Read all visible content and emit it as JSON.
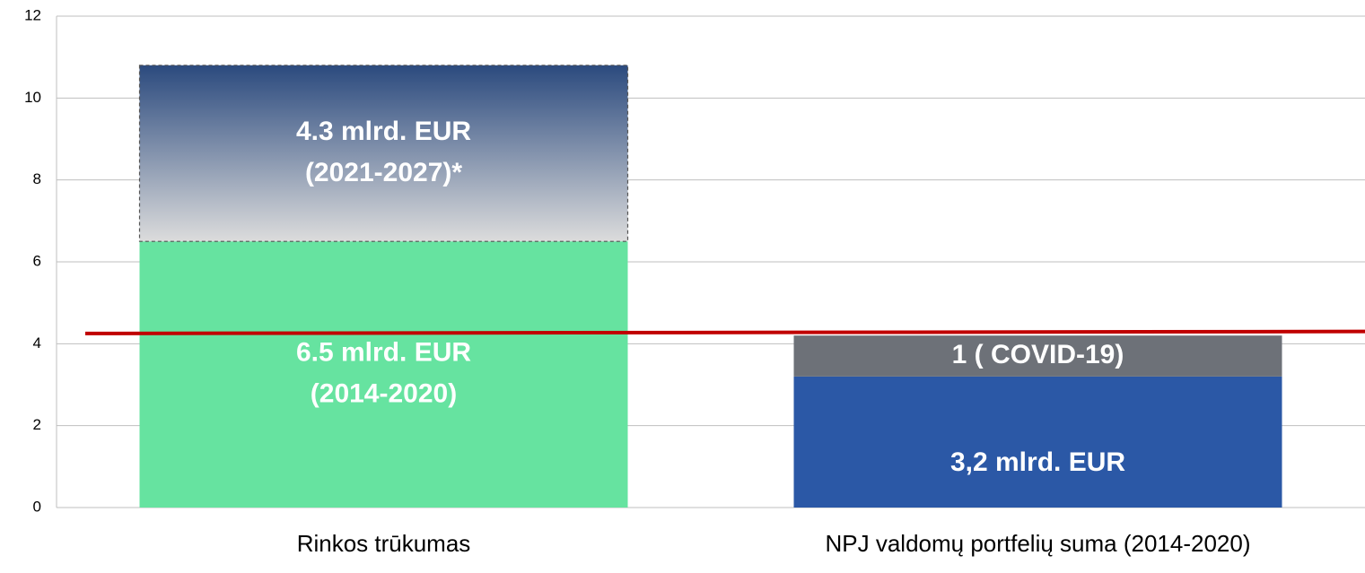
{
  "chart_data": {
    "type": "bar",
    "stacked": true,
    "categories": [
      "Rinkos trūkumas",
      "NPJ valdomų portfelių suma (2014-2020)"
    ],
    "series": [
      {
        "colors": [
          "#66e3a0",
          "#2b58a6"
        ],
        "values": [
          6.5,
          3.2
        ],
        "value_labels": [
          [
            "6.5 mlrd. EUR",
            "(2014-2020)"
          ],
          [
            "3,2 mlrd. EUR"
          ]
        ]
      },
      {
        "colors": [
          "#2b4a7e",
          "#6d7178"
        ],
        "gradient_to": "#dcdcdc",
        "values": [
          4.3,
          1
        ],
        "value_labels": [
          [
            "4.3 mlrd. EUR",
            "(2021-2027)*"
          ],
          [
            "1 ( COVID-19)"
          ]
        ]
      }
    ],
    "reference_line": {
      "values": [
        4.25,
        4.3
      ],
      "color": "#c00000"
    },
    "ylim": [
      0,
      12
    ],
    "yticks": [
      0,
      2,
      4,
      6,
      8,
      10,
      12
    ],
    "grid": true
  }
}
